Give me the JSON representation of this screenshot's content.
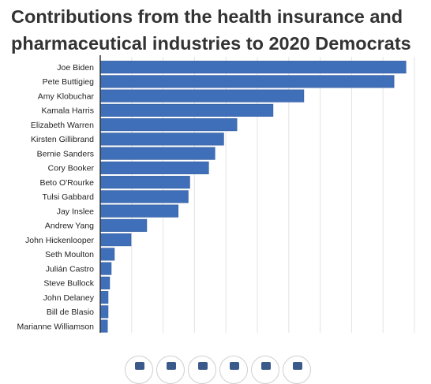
{
  "title": "Contributions from the health insurance and pharmaceutical industries to 2020 Democrats",
  "colors": {
    "bar": "#3f6fb8",
    "bar_edge": "#2f5a9e",
    "grid": "#e3e3e3",
    "axis": "#333333",
    "text": "#222222",
    "icon": "#3a5a8c"
  },
  "chart_data": {
    "type": "bar",
    "orientation": "horizontal",
    "title": "Contributions from the health insurance and pharmaceutical industries to 2020 Democrats",
    "xlabel": "",
    "ylabel": "",
    "grid": true,
    "xlim": [
      0,
      100
    ],
    "categories": [
      "Joe Biden",
      "Pete Buttigieg",
      "Amy Klobuchar",
      "Kamala Harris",
      "Elizabeth Warren",
      "Kirsten Gillibrand",
      "Bernie Sanders",
      "Cory Booker",
      "Beto O'Rourke",
      "Tulsi Gabbard",
      "Jay Inslee",
      "Andrew Yang",
      "John Hickenlooper",
      "Seth Moulton",
      "Julián Castro",
      "Steve Bullock",
      "John Delaney",
      "Bill de Blasio",
      "Marianne Williamson"
    ],
    "values": [
      97.3,
      93.5,
      64.8,
      55.0,
      43.5,
      39.3,
      36.5,
      34.5,
      28.5,
      28.0,
      24.8,
      14.8,
      9.8,
      4.5,
      3.5,
      3.0,
      2.5,
      2.5,
      2.3
    ]
  },
  "share_icons": [
    "twitter-icon",
    "facebook-icon",
    "pdf-icon",
    "email-icon",
    "print-icon",
    "comment-icon"
  ]
}
